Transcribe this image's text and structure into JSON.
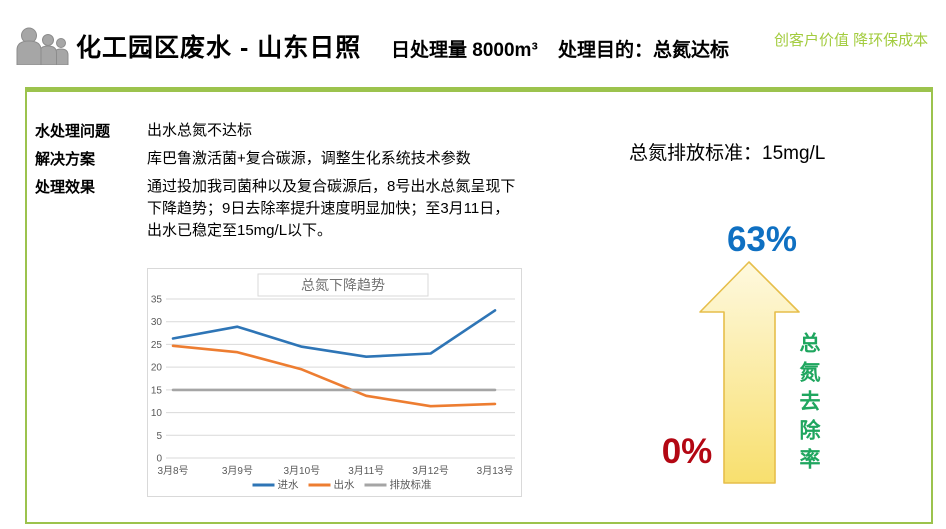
{
  "header": {
    "title": "化工园区废水 - 山东日照",
    "daily_volume": "日处理量 8000m³",
    "purpose": "处理目的：总氮达标",
    "slogan": "创客户价值 降环保成本",
    "icon": "people-group-icon"
  },
  "panel": {
    "rows": [
      {
        "label": "水处理问题",
        "value": "出水总氮不达标"
      },
      {
        "label": "解决方案",
        "value": "库巴鲁激活菌+复合碳源，调整生化系统技术参数"
      },
      {
        "label": "处理效果",
        "value": "通过投加我司菌种以及复合碳源后，8号出水总氮呈现下\n下降趋势；9日去除率提升速度明显加快；至3月11日，\n出水已稳定至15mg/L以下。"
      }
    ],
    "standard_note": "总氮排放标准：15mg/L"
  },
  "removal": {
    "max_label": "63%",
    "min_label": "0%",
    "axis_label": "总氮去除率"
  },
  "chart_data": {
    "type": "line",
    "title": "总氮下降趋势",
    "categories": [
      "3月8号",
      "3月9号",
      "3月10号",
      "3月11号",
      "3月12号",
      "3月13号"
    ],
    "series": [
      {
        "name": "进水",
        "color": "#2E75B6",
        "values": [
          26.3,
          28.9,
          24.5,
          22.3,
          23.0,
          32.5
        ]
      },
      {
        "name": "出水",
        "color": "#ED7D31",
        "values": [
          24.7,
          23.3,
          19.5,
          13.7,
          11.4,
          11.9
        ]
      },
      {
        "name": "排放标准",
        "color": "#A5A5A5",
        "values": [
          15,
          15,
          15,
          15,
          15,
          15
        ]
      }
    ],
    "xlabel": "",
    "ylabel": "",
    "ylim": [
      0,
      35
    ],
    "ytick_step": 5,
    "grid": true,
    "legend_position": "bottom",
    "axis_text_color": "#595959",
    "grid_color": "#D9D9D9"
  },
  "colors": {
    "accent_green": "#9CC34D",
    "slogan_green": "#A3CC3F",
    "removal_max_blue": "#0F70C2",
    "removal_min_red": "#B30713",
    "removal_axis_green": "#1FA65F",
    "arrow_fill_top": "#FEF9DF",
    "arrow_fill_bottom": "#F8DF6E",
    "arrow_stroke": "#E6BE4A"
  }
}
